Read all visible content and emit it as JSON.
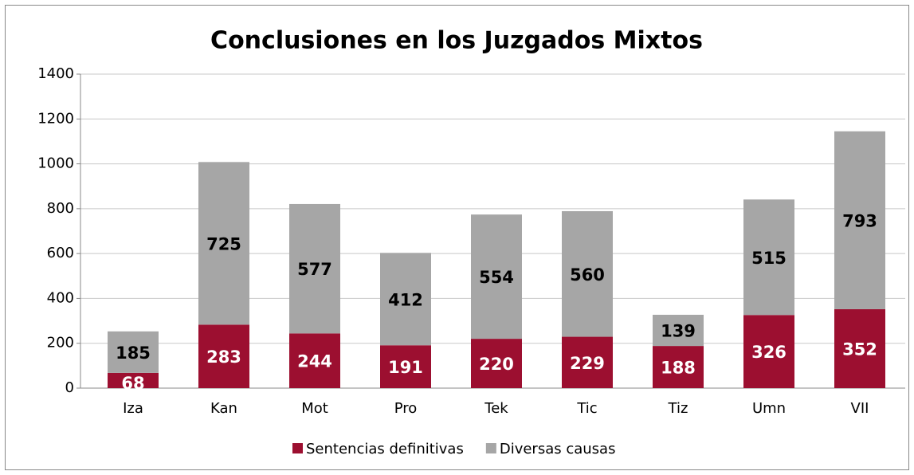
{
  "chart_data": {
    "type": "stacked_bar",
    "title": "Conclusiones en los Juzgados Mixtos",
    "categories": [
      "Iza",
      "Kan",
      "Mot",
      "Pro",
      "Tek",
      "Tic",
      "Tiz",
      "Umn",
      "VII"
    ],
    "series": [
      {
        "name": "Sentencias definitivas",
        "color": "#9c0f30",
        "label_color": "#ffffff",
        "values": [
          68,
          283,
          244,
          191,
          220,
          229,
          188,
          326,
          352
        ]
      },
      {
        "name": "Diversas causas",
        "color": "#a6a6a6",
        "label_color": "#000000",
        "values": [
          185,
          725,
          577,
          412,
          554,
          560,
          139,
          515,
          793
        ]
      }
    ],
    "ylim": [
      0,
      1400
    ],
    "yticks": [
      0,
      200,
      400,
      600,
      800,
      1000,
      1200,
      1400
    ],
    "grid": true,
    "legend": "bottom"
  }
}
